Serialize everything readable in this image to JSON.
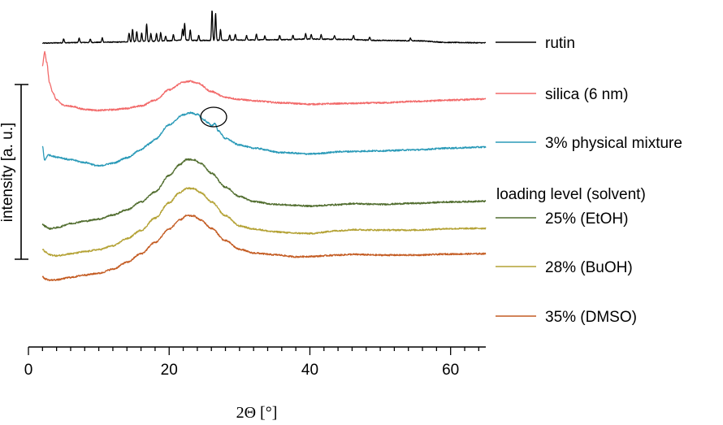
{
  "chart_data": {
    "type": "line",
    "title": "",
    "xlabel": "2Θ [°]",
    "ylabel": "intensity [a. u.]",
    "xlim": [
      0,
      65
    ],
    "xticks": [
      0,
      20,
      40,
      60
    ],
    "x_minor_step": 2,
    "ylim": [
      0,
      100
    ],
    "legend_group_title": "loading level (solvent)",
    "series": [
      {
        "name": "rutin",
        "color": "#000000",
        "baseline": 88.5,
        "points": [
          [
            2,
            88.6
          ],
          [
            4.5,
            88.7
          ],
          [
            8,
            88.8
          ],
          [
            12,
            88.9
          ],
          [
            16,
            89.1
          ],
          [
            20,
            89.3
          ],
          [
            22,
            89.5
          ],
          [
            24,
            89.4
          ],
          [
            26,
            89.4
          ],
          [
            30,
            89.5
          ],
          [
            35,
            89.6
          ],
          [
            40,
            89.8
          ],
          [
            45,
            89.7
          ],
          [
            50,
            89.4
          ],
          [
            55,
            89.3
          ],
          [
            60,
            88.8
          ],
          [
            65,
            88.7
          ]
        ],
        "peaks": [
          [
            5.0,
            1.2
          ],
          [
            7.2,
            1.3
          ],
          [
            8.8,
            1.0
          ],
          [
            10.5,
            1.3
          ],
          [
            14.3,
            2.6
          ],
          [
            14.8,
            3.7
          ],
          [
            15.4,
            2.9
          ],
          [
            16.1,
            2.5
          ],
          [
            16.8,
            5.1
          ],
          [
            17.4,
            2.2
          ],
          [
            18.2,
            2.2
          ],
          [
            18.8,
            2.4
          ],
          [
            19.5,
            1.4
          ],
          [
            20.6,
            1.8
          ],
          [
            21.9,
            3.2
          ],
          [
            22.2,
            5.0
          ],
          [
            23.0,
            3.0
          ],
          [
            24.2,
            1.5
          ],
          [
            26.1,
            8.9
          ],
          [
            26.6,
            7.9
          ],
          [
            27.3,
            3.1
          ],
          [
            28.6,
            1.5
          ],
          [
            29.4,
            1.7
          ],
          [
            31.0,
            1.3
          ],
          [
            32.4,
            1.7
          ],
          [
            33.6,
            1.2
          ],
          [
            35.7,
            1.3
          ],
          [
            37.6,
            1.2
          ],
          [
            39.4,
            1.6
          ],
          [
            40.2,
            1.3
          ],
          [
            41.6,
            1.3
          ],
          [
            43.5,
            1.1
          ],
          [
            46.2,
            1.2
          ],
          [
            48.5,
            0.9
          ],
          [
            54.3,
            0.8
          ]
        ]
      },
      {
        "name": "silica (6 nm)",
        "color": "#f26a6a",
        "points": [
          [
            2,
            82
          ],
          [
            2.3,
            86
          ],
          [
            2.6,
            83
          ],
          [
            3,
            77
          ],
          [
            3.5,
            74
          ],
          [
            4,
            72
          ],
          [
            5,
            70.5
          ],
          [
            6,
            70.2
          ],
          [
            8,
            69.3
          ],
          [
            10,
            69
          ],
          [
            12,
            69.2
          ],
          [
            14,
            69.6
          ],
          [
            16,
            70.3
          ],
          [
            18,
            72
          ],
          [
            20,
            75
          ],
          [
            22,
            77.2
          ],
          [
            23,
            77.5
          ],
          [
            24,
            77
          ],
          [
            26,
            74.5
          ],
          [
            28,
            72.8
          ],
          [
            30,
            72.2
          ],
          [
            32,
            71.8
          ],
          [
            36,
            71.2
          ],
          [
            40,
            70.8
          ],
          [
            45,
            71
          ],
          [
            50,
            71.2
          ],
          [
            55,
            71.6
          ],
          [
            60,
            72
          ],
          [
            65,
            72.3
          ]
        ]
      },
      {
        "name": "3% physical mixture",
        "color": "#2a9ab8",
        "points": [
          [
            2,
            58.5
          ],
          [
            2.3,
            54.5
          ],
          [
            2.8,
            56
          ],
          [
            4,
            55.4
          ],
          [
            6,
            54.6
          ],
          [
            8,
            53.8
          ],
          [
            10,
            52.8
          ],
          [
            12,
            53.6
          ],
          [
            14,
            55.2
          ],
          [
            16,
            57.5
          ],
          [
            17,
            59
          ],
          [
            17.3,
            59.5
          ],
          [
            18,
            60.6
          ],
          [
            20,
            64.8
          ],
          [
            22,
            67.7
          ],
          [
            23,
            68.3
          ],
          [
            24,
            67.8
          ],
          [
            25,
            66.2
          ],
          [
            25.5,
            65.4
          ],
          [
            26,
            64.5
          ],
          [
            26.5,
            65.2
          ],
          [
            27,
            63
          ],
          [
            28,
            60.8
          ],
          [
            30,
            58.9
          ],
          [
            32,
            58
          ],
          [
            36,
            56.7
          ],
          [
            40,
            56.3
          ],
          [
            45,
            57
          ],
          [
            50,
            57.2
          ],
          [
            55,
            57.5
          ],
          [
            60,
            58
          ],
          [
            65,
            58.3
          ]
        ]
      },
      {
        "name": "25% (EtOH)",
        "color": "#526e30",
        "points": [
          [
            2,
            35.7
          ],
          [
            2.4,
            35.2
          ],
          [
            3,
            34.5
          ],
          [
            4,
            34.8
          ],
          [
            6,
            36
          ],
          [
            8,
            36.7
          ],
          [
            10,
            37.3
          ],
          [
            12,
            38.5
          ],
          [
            14,
            40
          ],
          [
            16,
            42.3
          ],
          [
            18,
            45.2
          ],
          [
            20,
            50
          ],
          [
            21.5,
            53.2
          ],
          [
            22.5,
            54.7
          ],
          [
            23.5,
            54.6
          ],
          [
            24.5,
            53.5
          ],
          [
            26,
            50.7
          ],
          [
            28,
            46.6
          ],
          [
            30,
            43.9
          ],
          [
            32,
            42.4
          ],
          [
            35,
            41.6
          ],
          [
            38,
            41.3
          ],
          [
            40,
            41.1
          ],
          [
            44,
            41.5
          ],
          [
            46,
            41.8
          ],
          [
            50,
            41.6
          ],
          [
            55,
            41.9
          ],
          [
            60,
            42.3
          ],
          [
            65,
            42.5
          ]
        ]
      },
      {
        "name": "28% (BuOH)",
        "color": "#b4a235",
        "points": [
          [
            2,
            28.5
          ],
          [
            2.4,
            27.7
          ],
          [
            3,
            26.9
          ],
          [
            4,
            26.6
          ],
          [
            6,
            27.2
          ],
          [
            8,
            27.8
          ],
          [
            10,
            28.4
          ],
          [
            12,
            29.5
          ],
          [
            14,
            31.6
          ],
          [
            16,
            34
          ],
          [
            18,
            37.6
          ],
          [
            20,
            42.1
          ],
          [
            21.5,
            45
          ],
          [
            22.5,
            46.3
          ],
          [
            23.5,
            46.2
          ],
          [
            24.5,
            45
          ],
          [
            26,
            42.3
          ],
          [
            28,
            38.3
          ],
          [
            30,
            35.3
          ],
          [
            32,
            34.4
          ],
          [
            35,
            33.6
          ],
          [
            38,
            33.2
          ],
          [
            40,
            33.1
          ],
          [
            44,
            33.9
          ],
          [
            46,
            34.2
          ],
          [
            50,
            34.1
          ],
          [
            55,
            34.1
          ],
          [
            60,
            34.5
          ],
          [
            65,
            34.6
          ]
        ]
      },
      {
        "name": "35% (DMSO)",
        "color": "#c45c23",
        "points": [
          [
            2,
            20.4
          ],
          [
            2.5,
            19.8
          ],
          [
            3,
            19.5
          ],
          [
            4,
            19.6
          ],
          [
            6,
            20.3
          ],
          [
            8,
            21
          ],
          [
            10,
            21.5
          ],
          [
            12,
            22.7
          ],
          [
            14,
            24.7
          ],
          [
            16,
            27.2
          ],
          [
            18,
            30.5
          ],
          [
            20,
            34.4
          ],
          [
            21.5,
            37
          ],
          [
            22.5,
            38.3
          ],
          [
            23.5,
            38.2
          ],
          [
            24.5,
            37
          ],
          [
            26,
            34.6
          ],
          [
            28,
            31
          ],
          [
            30,
            28.5
          ],
          [
            32,
            27.4
          ],
          [
            35,
            26.9
          ],
          [
            38,
            26.3
          ],
          [
            40,
            26.4
          ],
          [
            44,
            26.8
          ],
          [
            46,
            27
          ],
          [
            50,
            26.8
          ],
          [
            55,
            26.8
          ],
          [
            60,
            27.1
          ],
          [
            65,
            27.2
          ]
        ]
      }
    ],
    "scale_bar_label": "intensity [a. u.]",
    "annotation": "circle marks rutin reflection in physical mixture at about 26.6°"
  }
}
